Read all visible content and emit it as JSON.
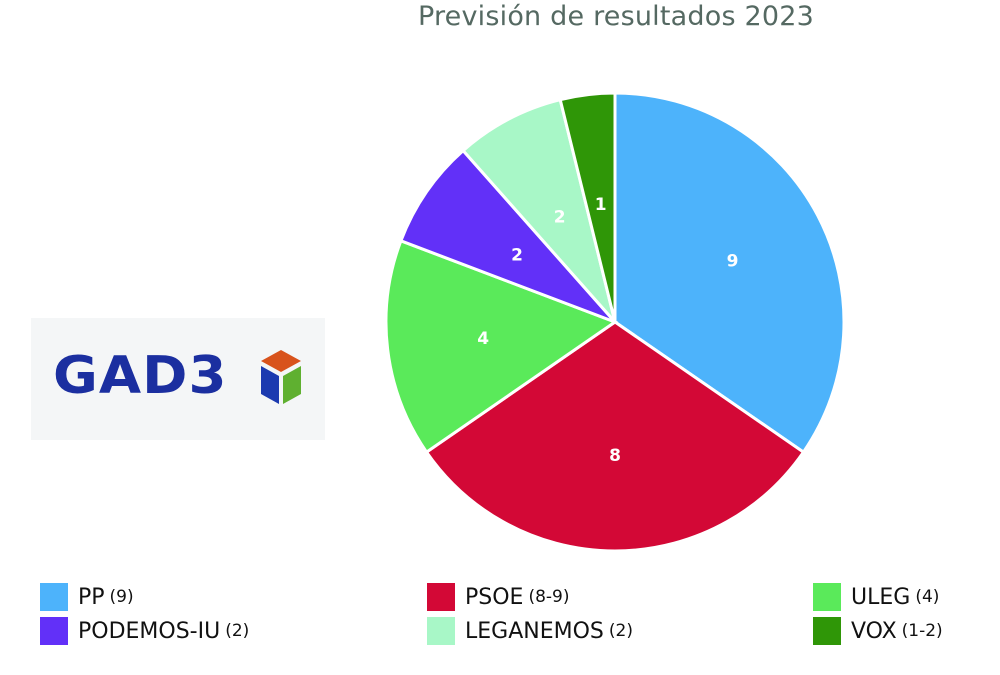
{
  "title": "Previsión de resultados 2023",
  "logo": {
    "text": "GAD3",
    "cube_colors": {
      "top": "#d8531c",
      "left": "#1b3ab0",
      "right": "#5fb030"
    }
  },
  "chart_data": {
    "type": "pie",
    "title": "Previsión de resultados 2023",
    "start_angle_deg": 0,
    "direction": "clockwise",
    "slices": [
      {
        "label": "PP",
        "value": 9,
        "color": "#4db3fb",
        "data_label": "9"
      },
      {
        "label": "PSOE",
        "value": 8,
        "color": "#d30836",
        "data_label": "8"
      },
      {
        "label": "ULEG",
        "value": 4,
        "color": "#5aea5a",
        "data_label": "4"
      },
      {
        "label": "PODEMOS-IU",
        "value": 2,
        "color": "#6230f8",
        "data_label": "2"
      },
      {
        "label": "LEGANEMOS",
        "value": 2,
        "color": "#a8f7c7",
        "data_label": "2"
      },
      {
        "label": "VOX",
        "value": 1,
        "color": "#2f9607",
        "data_label": "1"
      }
    ],
    "legend": [
      {
        "name": "PP",
        "seats": "(9)",
        "color": "#4db3fb"
      },
      {
        "name": "PSOE",
        "seats": "(8-9)",
        "color": "#d30836"
      },
      {
        "name": "ULEG",
        "seats": "(4)",
        "color": "#5aea5a"
      },
      {
        "name": "PODEMOS-IU",
        "seats": "(2)",
        "color": "#6230f8"
      },
      {
        "name": "LEGANEMOS",
        "seats": "(2)",
        "color": "#a8f7c7"
      },
      {
        "name": "VOX",
        "seats": "(1-2)",
        "color": "#2f9607"
      }
    ],
    "legend_position": "bottom"
  }
}
